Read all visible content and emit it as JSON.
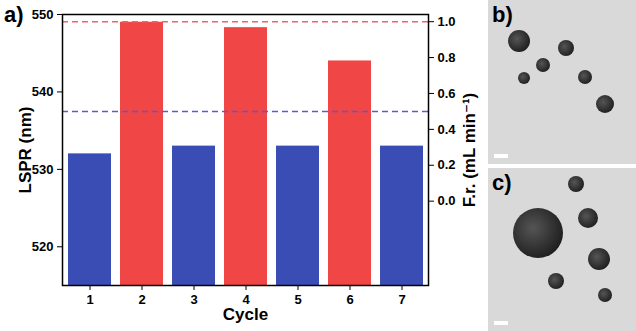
{
  "chart_data": {
    "type": "bar",
    "panel_label": "a)",
    "xlabel": "Cycle",
    "ylabel": "LSPR (nm)",
    "y2label": "F.r. (mL min⁻¹)",
    "categories": [
      "1",
      "2",
      "3",
      "4",
      "5",
      "6",
      "7"
    ],
    "values": [
      532,
      549,
      533,
      548.3,
      533,
      544,
      533
    ],
    "colors": [
      "#3a4db4",
      "#f04646",
      "#3a4db4",
      "#f04646",
      "#3a4db4",
      "#f04646",
      "#3a4db4"
    ],
    "ylim": [
      515,
      550
    ],
    "yticks": [
      520,
      530,
      540,
      550
    ],
    "y2lim": [
      -0.47,
      1.04
    ],
    "y2ticks": [
      {
        "value": 0,
        "label": "0.0"
      },
      0.2,
      0.4,
      0.6,
      0.8,
      {
        "value": 1,
        "label": "1.0"
      }
    ],
    "reference_lines": [
      {
        "axis": "y2",
        "value": 1.0,
        "color": "#f26464",
        "line_style": "dashed"
      },
      {
        "axis": "y2",
        "value": 0.5,
        "color": "#5a5ad8",
        "line_style": "dashed"
      }
    ],
    "grid": false
  },
  "images": [
    {
      "label": "b)"
    },
    {
      "label": "c)"
    }
  ]
}
